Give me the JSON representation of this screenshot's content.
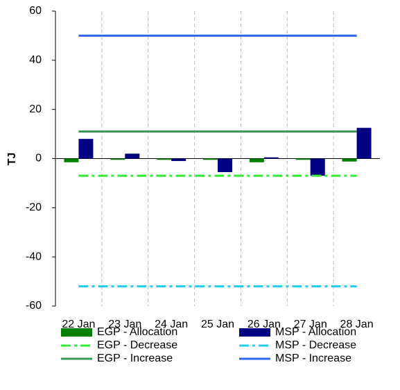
{
  "chart_data": {
    "type": "bar-line",
    "y_label": "TJ",
    "categories": [
      "22 Jan",
      "23 Jan",
      "24 Jan",
      "25 Jan",
      "26 Jan",
      "27 Jan",
      "28 Jan"
    ],
    "ylim": [
      -60,
      60
    ],
    "yticks": [
      -60,
      -40,
      -20,
      0,
      20,
      40,
      60
    ],
    "x_grid": true,
    "series": [
      {
        "name": "EGP - Allocation",
        "kind": "bar",
        "color": "#008000",
        "values": [
          -1.5,
          -0.5,
          -0.5,
          -0.5,
          -1.5,
          -0.5,
          -1.2
        ]
      },
      {
        "name": "MSP - Allocation",
        "kind": "bar",
        "color": "#000080",
        "values": [
          8,
          2,
          -1,
          -5.5,
          0.5,
          -7,
          12.5
        ]
      },
      {
        "name": "EGP - Decrease",
        "kind": "line",
        "line_style": "dashdot",
        "color": "#33ee33",
        "values": [
          -7,
          -7,
          -7,
          -7,
          -7,
          -7,
          -7
        ]
      },
      {
        "name": "MSP - Decrease",
        "kind": "line",
        "line_style": "dashdot",
        "color": "#22ccee",
        "values": [
          -52,
          -52,
          -52,
          -52,
          -52,
          -52,
          -52
        ]
      },
      {
        "name": "EGP - Increase",
        "kind": "line",
        "line_style": "solid",
        "color": "#3a9a5a",
        "values": [
          11,
          11,
          11,
          11,
          11,
          11,
          11
        ]
      },
      {
        "name": "MSP - Increase",
        "kind": "line",
        "line_style": "solid",
        "color": "#3366ee",
        "values": [
          50,
          50,
          50,
          50,
          50,
          50,
          50
        ]
      }
    ]
  }
}
